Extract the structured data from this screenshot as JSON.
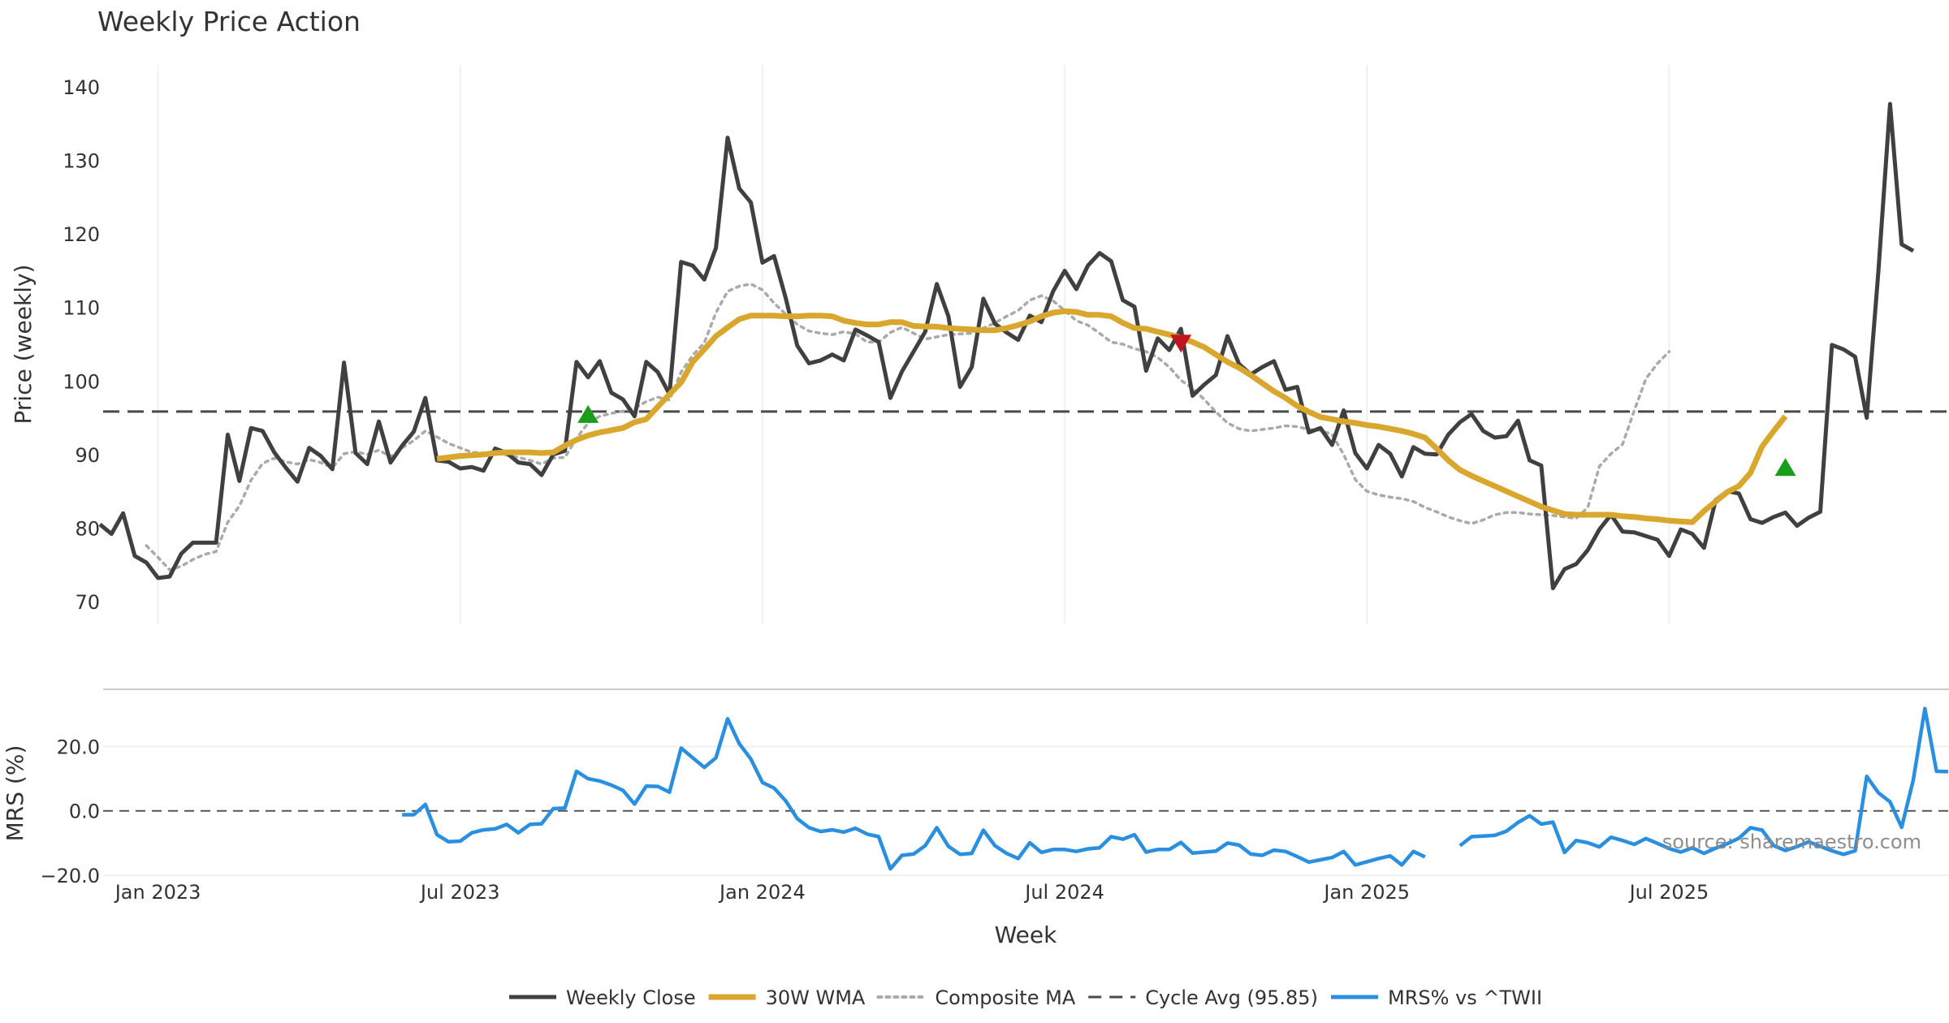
{
  "chart_data": [
    {
      "type": "line",
      "title": "Weekly Price Action",
      "xlabel": "Week",
      "ylabel": "Price (weekly)",
      "ylim": [
        67,
        143
      ],
      "yticks": [
        70,
        80,
        90,
        100,
        110,
        120,
        130,
        140
      ],
      "x_start": "2022-11-27",
      "x_step_days": 7,
      "reference_line": {
        "value": 95.85,
        "style": "dashed"
      },
      "series": [
        {
          "name": "Weekly Close",
          "color": "#404040",
          "values": [
            80.5,
            79.2,
            82,
            76.2,
            75.3,
            73.2,
            73.4,
            76.5,
            78,
            78,
            78,
            92.7,
            86.4,
            93.6,
            93.2,
            90.3,
            88.2,
            86.3,
            90.9,
            89.8,
            88,
            102.5,
            90.2,
            88.7,
            94.5,
            88.9,
            91.2,
            93.1,
            97.7,
            89.2,
            89,
            88.1,
            88.3,
            87.8,
            90.8,
            90.2,
            88.9,
            88.7,
            87.2,
            90,
            90.5,
            102.6,
            100.5,
            102.7,
            98.4,
            97.5,
            95.2,
            102.6,
            101.2,
            98.2,
            116.2,
            115.7,
            113.8,
            118.1,
            133.1,
            126.2,
            124.3,
            116.1,
            117,
            111.3,
            104.8,
            102.4,
            102.8,
            103.6,
            102.8,
            107,
            106.2,
            105.3,
            97.7,
            101.3,
            104,
            106.7,
            113.2,
            108.8,
            99.2,
            101.9,
            111.2,
            107.8,
            106.6,
            105.6,
            108.9,
            108,
            112.2,
            115,
            112.5,
            115.7,
            117.4,
            116.3,
            111,
            110.1,
            101.4,
            105.8,
            104.2,
            107.1,
            98,
            99.5,
            100.8,
            106.1,
            102.3,
            100.9,
            101.9,
            102.7,
            98.8,
            99.2,
            93,
            93.6,
            91.3,
            96,
            90.2,
            88.1,
            91.3,
            90.1,
            87,
            91,
            90.1,
            90,
            92.7,
            94.4,
            95.5,
            93.2,
            92.3,
            92.5,
            94.6,
            89.2,
            88.5,
            71.8,
            74.4,
            75.1,
            77,
            79.8,
            81.8,
            79.5,
            79.4,
            78.9,
            78.4,
            76.2,
            79.8,
            79.2,
            77.3,
            83.8,
            85,
            84.7,
            81.2,
            80.7,
            81.5,
            82.1,
            80.3,
            81.4,
            82.2,
            104.9,
            104.3,
            103.3,
            95,
            115,
            137.7,
            118.6,
            117.7
          ]
        },
        {
          "name": "30W WMA",
          "color": "#d9a62e",
          "start_index": 29,
          "values": [
            89.4,
            89.6,
            89.8,
            89.9,
            90,
            90.2,
            90.3,
            90.3,
            90.3,
            90.2,
            90.3,
            91.2,
            92,
            92.6,
            93,
            93.3,
            93.6,
            94.4,
            94.8,
            96.5,
            98.2,
            99.8,
            102.6,
            104.3,
            106.1,
            107.3,
            108.4,
            108.9,
            108.9,
            108.9,
            108.8,
            108.8,
            108.9,
            108.9,
            108.8,
            108.2,
            107.9,
            107.7,
            107.7,
            108,
            108,
            107.5,
            107.4,
            107.4,
            107.2,
            107.1,
            107,
            106.9,
            106.9,
            107.2,
            107.6,
            108.1,
            108.8,
            109.3,
            109.5,
            109.4,
            109,
            109,
            108.8,
            107.9,
            107.2,
            107.1,
            106.7,
            106.3,
            105.9,
            105.3,
            104.6,
            103.6,
            102.6,
            101.8,
            100.8,
            99.7,
            98.6,
            97.7,
            96.6,
            95.8,
            95.1,
            94.8,
            94.5,
            94.3,
            94,
            93.8,
            93.5,
            93.2,
            92.8,
            92.3,
            90.8,
            89.2,
            87.9,
            87.1,
            86.4,
            85.7,
            85,
            84.3,
            83.6,
            82.9,
            82.4,
            81.9,
            81.8,
            81.8,
            81.8,
            81.8,
            81.6,
            81.5,
            81.3,
            81.2,
            81,
            80.9,
            80.8,
            82.3,
            83.6,
            84.9,
            85.7,
            87.5,
            91.1,
            93.2,
            95.2
          ]
        },
        {
          "name": "Composite MA",
          "color": "#aaaaaa",
          "start_index": 4,
          "values": [
            77.6,
            76,
            74.3,
            74.8,
            75.7,
            76.4,
            76.8,
            80.8,
            83,
            86.5,
            88.8,
            89.5,
            89,
            88.7,
            89.3,
            88.9,
            88.2,
            90.1,
            90.4,
            90,
            90.6,
            89.7,
            90.9,
            91.9,
            93.2,
            92.4,
            91.5,
            90.9,
            90.3,
            90.2,
            90.4,
            89.9,
            89.6,
            89.2,
            88.7,
            89.5,
            89.6,
            92.2,
            94.3,
            95.2,
            95.6,
            95.9,
            96.3,
            97.2,
            97.8,
            97.4,
            101.2,
            103.5,
            105.2,
            109.3,
            112.2,
            112.9,
            113.2,
            112.4,
            110.6,
            109.1,
            107.7,
            106.8,
            106.5,
            106.3,
            106.7,
            106.4,
            105.3,
            105.3,
            106.6,
            107.3,
            106.5,
            105.7,
            106,
            106.3,
            106.4,
            106.5,
            107.2,
            107.9,
            108.8,
            109.6,
            111,
            111.6,
            110.9,
            109.6,
            108.2,
            107.6,
            106.5,
            105.3,
            105,
            104.4,
            104,
            103.2,
            101.9,
            100.1,
            99,
            97.5,
            95.8,
            94.3,
            93.5,
            93.2,
            93.4,
            93.6,
            93.9,
            93.8,
            93.4,
            93.3,
            92.7,
            90,
            86.6,
            85,
            84.5,
            84.2,
            84,
            83.6,
            82.8,
            82.2,
            81.5,
            81,
            80.6,
            81.1,
            81.8,
            82.1,
            82.1,
            81.9,
            81.8,
            81.7,
            81.5,
            81.3,
            82.8,
            88.4,
            90.1,
            91.4,
            96,
            100.3,
            102.4,
            104
          ]
        }
      ],
      "markers": [
        {
          "type": "buy",
          "symbol": "triangle-up",
          "color": "#1a9e1a",
          "index": 42,
          "value": 95.4
        },
        {
          "type": "sell",
          "symbol": "triangle-down",
          "color": "#c0161f",
          "index": 93,
          "value": 105.2
        },
        {
          "type": "buy",
          "symbol": "triangle-up",
          "color": "#1a9e1a",
          "index": 145,
          "value": 88.2
        }
      ]
    },
    {
      "type": "line",
      "ylabel": "MRS (%)",
      "ylim": [
        -21,
        36
      ],
      "yticks": [
        20,
        0,
        -20
      ],
      "ytick_labels": [
        "20.0",
        "0.0",
        "−20.0"
      ],
      "reference_line": {
        "value": 0,
        "style": "dashed"
      },
      "xticks": [
        {
          "label": "Jan 2023",
          "index": 5
        },
        {
          "label": "Jul 2023",
          "index": 31
        },
        {
          "label": "Jan 2024",
          "index": 57
        },
        {
          "label": "Jul 2024",
          "index": 83
        },
        {
          "label": "Jan 2025",
          "index": 109
        },
        {
          "label": "Jul 2025",
          "index": 135
        }
      ],
      "series": [
        {
          "name": "MRS% vs ^TWII",
          "color": "#2b8fe0",
          "start_index": 26,
          "values": [
            -1.2,
            -1.2,
            2,
            -7.4,
            -9.6,
            -9.4,
            -6.8,
            -5.9,
            -5.6,
            -4.2,
            -6.8,
            -4.2,
            -4,
            0.7,
            0.9,
            12.3,
            10,
            9.3,
            8,
            6.4,
            2.1,
            7.7,
            7.6,
            5.8,
            19.5,
            16.5,
            13.5,
            16.5,
            28.6,
            20.9,
            16.1,
            8.8,
            7.1,
            3.1,
            -2.4,
            -5.2,
            -6.4,
            -5.9,
            -6.6,
            -5.4,
            -7.2,
            -8,
            -18,
            -13.8,
            -13.4,
            -10.8,
            -5.2,
            -11,
            -13.5,
            -13.2,
            -6,
            -10.8,
            -13.2,
            -14.8,
            -9.9,
            -12.9,
            -12,
            -12,
            -12.6,
            -11.8,
            -11.5,
            -8,
            -8.8,
            -7.4,
            -12.8,
            -12,
            -12,
            -9.8,
            -13.1,
            -12.8,
            -12.5,
            -10,
            -10.6,
            -13.4,
            -13.8,
            -12.2,
            -12.6,
            -14.2,
            -15.9,
            -15.2,
            -14.5,
            -12.6,
            -16.8,
            -15.8,
            -14.8,
            -14,
            -16.8,
            -12.6,
            -14.3,
            null,
            null,
            -10.8,
            -8,
            -7.8,
            -7.6,
            -6.3,
            -3.6,
            -1.5,
            -4.1,
            -3.5,
            -12.9,
            -9.2,
            -9.9,
            -11.2,
            -8.2,
            -9.2,
            -10.4,
            -8.6,
            -10.1,
            -11.7,
            -12.8,
            -11.5,
            -13.2,
            -11.6,
            -10.2,
            -8.5,
            -5.2,
            -6,
            -10.8,
            -12.3,
            -11.1,
            -9.6,
            -11,
            -12.4,
            -13.5,
            -12.4,
            10.7,
            5.6,
            2.8,
            -5.1,
            9.6,
            31.8,
            12.3,
            12.2
          ]
        }
      ]
    }
  ],
  "watermark": "source: sharemaestro.com",
  "legend": {
    "placement": "bottom-center",
    "entries": [
      {
        "label": "Weekly Close",
        "style": "solid",
        "color": "#404040"
      },
      {
        "label": "30W WMA",
        "style": "solid-thick",
        "color": "#d9a62e"
      },
      {
        "label": "Composite MA",
        "style": "dotted",
        "color": "#aaaaaa"
      },
      {
        "label": "Cycle Avg (95.85)",
        "style": "dashed",
        "color": "#4a4a4a"
      },
      {
        "label": "MRS% vs ^TWII",
        "style": "solid",
        "color": "#2b8fe0"
      }
    ]
  }
}
